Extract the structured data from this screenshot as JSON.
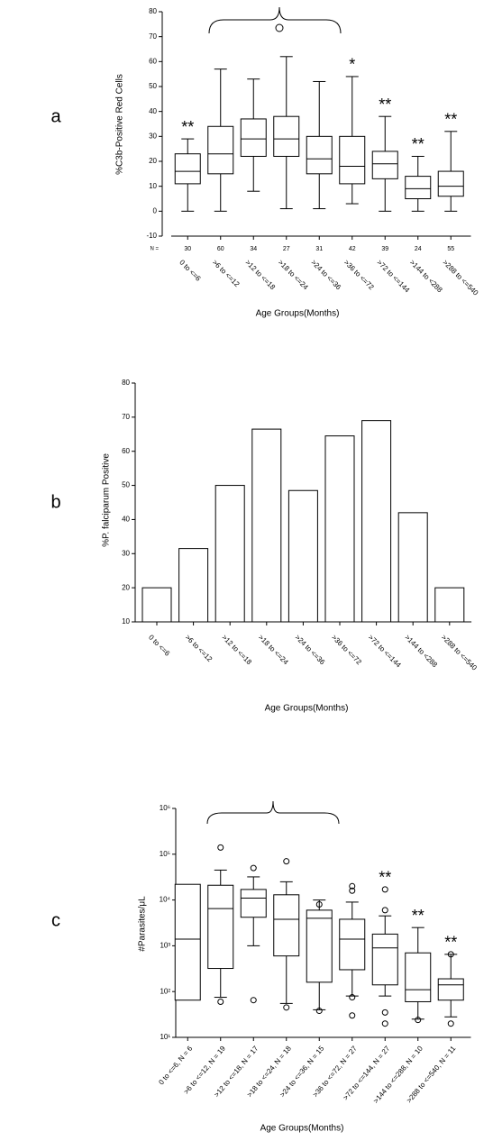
{
  "chart_data": [
    {
      "type": "box",
      "panel_label": "a",
      "y_label": "%C3b-Positive Red Cells",
      "x_label": "Age Groups(Months)",
      "categories": [
        "0 to <=6",
        ">6 to <=12",
        ">12 to <=18",
        ">18 to <=24",
        ">24 to <=36",
        ">36 to <=72",
        ">72 to <=144",
        ">144 to <288",
        ">288 to <=540"
      ],
      "n_label": "N =",
      "n": [
        30,
        60,
        34,
        27,
        31,
        42,
        39,
        24,
        55
      ],
      "boxes": [
        {
          "min": 0,
          "q1": 11,
          "median": 16,
          "q3": 23,
          "max": 29,
          "outliers": []
        },
        {
          "min": 0,
          "q1": 15,
          "median": 23,
          "q3": 34,
          "max": 57,
          "outliers": []
        },
        {
          "min": 8,
          "q1": 22,
          "median": 29,
          "q3": 37,
          "max": 53,
          "outliers": []
        },
        {
          "min": 1,
          "q1": 22,
          "median": 29,
          "q3": 38,
          "max": 62,
          "outliers": []
        },
        {
          "min": 1,
          "q1": 15,
          "median": 21,
          "q3": 30,
          "max": 52,
          "outliers": []
        },
        {
          "min": 3,
          "q1": 11,
          "median": 18,
          "q3": 30,
          "max": 54,
          "outliers": []
        },
        {
          "min": 0,
          "q1": 13,
          "median": 19,
          "q3": 24,
          "max": 38,
          "outliers": []
        },
        {
          "min": 0,
          "q1": 5,
          "median": 9,
          "q3": 14,
          "max": 22,
          "outliers": []
        },
        {
          "min": 0,
          "q1": 6,
          "median": 10,
          "q3": 16,
          "max": 32,
          "outliers": []
        }
      ],
      "annotations": [
        "**",
        null,
        null,
        null,
        null,
        "*",
        "**",
        "**",
        "**"
      ],
      "ylim": [
        -10,
        80
      ],
      "yticks": [
        -10,
        0,
        10,
        20,
        30,
        40,
        50,
        60,
        70,
        80
      ],
      "log_scale": false,
      "color": "#000000"
    },
    {
      "type": "bar",
      "panel_label": "b",
      "y_label": "%P. falciparum Positive",
      "x_label": "Age Groups(Months)",
      "categories": [
        "0 to <=6",
        ">6 to <=12",
        ">12 to <=18",
        ">18 to <=24",
        ">24 to <=36",
        ">36 to <=72",
        ">72 to <=144",
        ">144 to <288",
        ">288 to <=540"
      ],
      "values": [
        20,
        31.5,
        50,
        66.5,
        48.5,
        64.5,
        69,
        42,
        20
      ],
      "ylim": [
        10,
        80
      ],
      "yticks": [
        10,
        20,
        30,
        40,
        50,
        60,
        70,
        80
      ],
      "log_scale": false,
      "color": "#ffffff"
    },
    {
      "type": "box",
      "panel_label": "c",
      "y_label": "#Parasites/μL",
      "x_label": "Age Groups(Months)",
      "categories": [
        "0 to <=6, N = 6",
        ">6 to <=12, N = 19",
        ">12 to <=18, N = 17",
        ">18 to <=24, N = 18",
        ">24 to <=36, N = 15",
        ">36 to <=72, N = 27",
        ">72 to <=144, N = 27",
        ">144 to <=288, N = 10",
        ">288 to <=540, N = 11"
      ],
      "boxes": [
        {
          "min": null,
          "q1": 65,
          "median": 1400,
          "q3": 22000,
          "max": null,
          "outliers": []
        },
        {
          "min": 75,
          "q1": 320,
          "median": 6500,
          "q3": 21000,
          "max": 45000,
          "outliers": [
            140000,
            60
          ]
        },
        {
          "min": 1000,
          "q1": 4200,
          "median": 11000,
          "q3": 17000,
          "max": 32000,
          "outliers": [
            50000,
            65
          ]
        },
        {
          "min": 55,
          "q1": 600,
          "median": 3800,
          "q3": 13000,
          "max": 25000,
          "outliers": [
            70000,
            45
          ]
        },
        {
          "min": 40,
          "q1": 160,
          "median": 4000,
          "q3": 6000,
          "max": 10000,
          "outliers": [
            8000,
            38
          ]
        },
        {
          "min": 80,
          "q1": 300,
          "median": 1400,
          "q3": 3800,
          "max": 9000,
          "outliers": [
            20000,
            16000,
            75,
            30
          ]
        },
        {
          "min": 80,
          "q1": 140,
          "median": 900,
          "q3": 1800,
          "max": 4500,
          "outliers": [
            17000,
            6000,
            35,
            20
          ]
        },
        {
          "min": 25,
          "q1": 60,
          "median": 110,
          "q3": 700,
          "max": 2500,
          "outliers": [
            24
          ]
        },
        {
          "min": 28,
          "q1": 65,
          "median": 140,
          "q3": 190,
          "max": 650,
          "outliers": [
            650,
            20
          ]
        }
      ],
      "annotations": [
        null,
        null,
        null,
        null,
        null,
        null,
        "**",
        "**",
        "**"
      ],
      "ylim": [
        10,
        1000000
      ],
      "yticks": [
        {
          "value": 10,
          "label": "10¹"
        },
        {
          "value": 100,
          "label": "10²"
        },
        {
          "value": 1000,
          "label": "10³"
        },
        {
          "value": 10000,
          "label": "10⁴"
        },
        {
          "value": 100000,
          "label": "10⁵"
        },
        {
          "value": 1000000,
          "label": "10⁶"
        }
      ],
      "log_scale": true,
      "color": "#000000"
    }
  ]
}
